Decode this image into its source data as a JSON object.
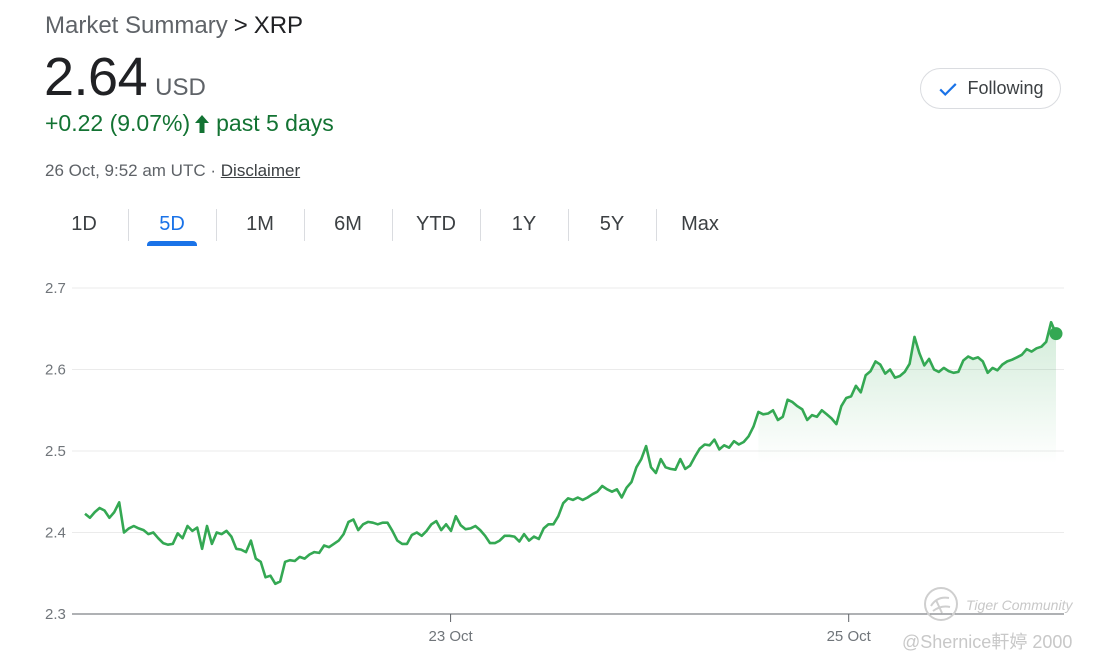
{
  "header": {
    "breadcrumb_prefix": "Market Summary",
    "breadcrumb_sep": ">",
    "symbol": "XRP",
    "price": "2.64",
    "currency": "USD",
    "change": "+0.22 (9.07%)",
    "change_period": "past 5 days",
    "timestamp": "26 Oct, 9:52 am UTC",
    "dot": "·",
    "disclaimer": "Disclaimer"
  },
  "follow_button": {
    "label": "Following",
    "icon": "checkmark-icon"
  },
  "tabs": [
    {
      "label": "1D"
    },
    {
      "label": "5D",
      "active": true
    },
    {
      "label": "1M"
    },
    {
      "label": "6M"
    },
    {
      "label": "YTD"
    },
    {
      "label": "1Y"
    },
    {
      "label": "5Y"
    },
    {
      "label": "Max"
    }
  ],
  "colors": {
    "line": "#34a853",
    "change": "#137333",
    "accent": "#1a73e8",
    "grid": "#ebebeb"
  },
  "chart_data": {
    "type": "line",
    "title": "",
    "ylim": [
      2.3,
      2.7
    ],
    "yticks": [
      2.7,
      2.6,
      2.5,
      2.4,
      2.3
    ],
    "xlim": [
      0,
      1
    ],
    "xticks": [
      {
        "x": 0.3765,
        "label": "23 Oct"
      },
      {
        "x": 0.7865,
        "label": "25 Oct"
      }
    ],
    "grid": true,
    "legend": "none",
    "series": [
      {
        "values": [
          2.423,
          2.418,
          2.425,
          2.43,
          2.427,
          2.418,
          2.425,
          2.437,
          2.4,
          2.405,
          2.408,
          2.405,
          2.403,
          2.398,
          2.4,
          2.393,
          2.387,
          2.385,
          2.386,
          2.399,
          2.393,
          2.408,
          2.402,
          2.406,
          2.38,
          2.408,
          2.386,
          2.4,
          2.398,
          2.402,
          2.395,
          2.38,
          2.379,
          2.376,
          2.39,
          2.368,
          2.364,
          2.345,
          2.347,
          2.337,
          2.34,
          2.364,
          2.366,
          2.365,
          2.37,
          2.368,
          2.373,
          2.376,
          2.375,
          2.384,
          2.382,
          2.386,
          2.39,
          2.398,
          2.413,
          2.416,
          2.403,
          2.41,
          2.413,
          2.412,
          2.41,
          2.412,
          2.412,
          2.402,
          2.39,
          2.386,
          2.386,
          2.397,
          2.4,
          2.396,
          2.402,
          2.41,
          2.414,
          2.403,
          2.41,
          2.402,
          2.42,
          2.409,
          2.404,
          2.405,
          2.408,
          2.403,
          2.396,
          2.387,
          2.387,
          2.39,
          2.396,
          2.396,
          2.395,
          2.389,
          2.398,
          2.39,
          2.395,
          2.392,
          2.405,
          2.41,
          2.41,
          2.42,
          2.436,
          2.442,
          2.44,
          2.443,
          2.44,
          2.443,
          2.447,
          2.45,
          2.457,
          2.453,
          2.45,
          2.453,
          2.443,
          2.455,
          2.462,
          2.48,
          2.49,
          2.506,
          2.48,
          2.473,
          2.49,
          2.48,
          2.478,
          2.477,
          2.49,
          2.478,
          2.482,
          2.493,
          2.503,
          2.508,
          2.507,
          2.514,
          2.502,
          2.507,
          2.504,
          2.512,
          2.508,
          2.511,
          2.518,
          2.53,
          2.548,
          2.545,
          2.546,
          2.55,
          2.538,
          2.542,
          2.563,
          2.56,
          2.555,
          2.551,
          2.538,
          2.544,
          2.542,
          2.55,
          2.545,
          2.54,
          2.533,
          2.555,
          2.565,
          2.567,
          2.58,
          2.572,
          2.593,
          2.598,
          2.61,
          2.606,
          2.595,
          2.6,
          2.59,
          2.592,
          2.597,
          2.607,
          2.64,
          2.62,
          2.605,
          2.613,
          2.6,
          2.597,
          2.602,
          2.598,
          2.596,
          2.597,
          2.611,
          2.616,
          2.613,
          2.615,
          2.61,
          2.596,
          2.602,
          2.599,
          2.606,
          2.61,
          2.612,
          2.615,
          2.618,
          2.625,
          2.622,
          2.626,
          2.628,
          2.634,
          2.658,
          2.644
        ]
      }
    ]
  },
  "watermark": {
    "brand": "Tiger Community",
    "user": "@Shernice軒婷 2000"
  }
}
